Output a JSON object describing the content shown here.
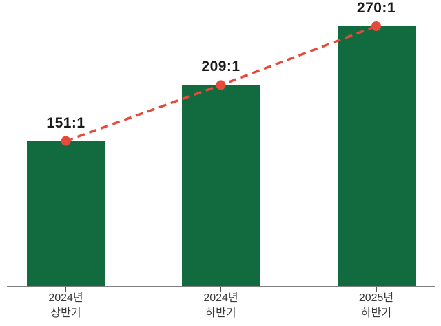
{
  "meta": {
    "background": "#ffffff"
  },
  "chart_data": {
    "type": "bar",
    "title": "",
    "xlabel": "",
    "ylabel": "",
    "categories": [
      "2024년 상반기",
      "2024년 하반기",
      "2025년 하반기"
    ],
    "categories_lines": [
      [
        "2024년",
        "상반기"
      ],
      [
        "2024년",
        "하반기"
      ],
      [
        "2025년",
        "하반기"
      ]
    ],
    "values": [
      151,
      209,
      270
    ],
    "value_labels": [
      "151:1",
      "209:1",
      "270:1"
    ],
    "ylim": [
      0,
      280
    ],
    "grid": false,
    "legend": false,
    "overlay_line": {
      "type": "line",
      "style": "dashed",
      "marker": "circle",
      "values": [
        151,
        209,
        270
      ]
    },
    "colors": {
      "bar": "#116b3f",
      "line": "#e64a3b",
      "marker": "#e64a3b",
      "axis": "#7f7f7f",
      "tick": "#565656",
      "value_label_text": "#1a1a1a",
      "axis_label_text": "#383838"
    }
  }
}
